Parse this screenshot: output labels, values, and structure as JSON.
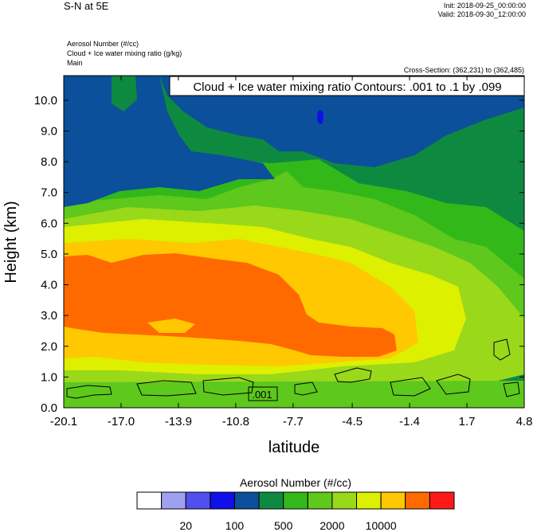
{
  "header": {
    "title": "S-N at 5E",
    "init": "Init: 2018-09-25_00:00:00",
    "valid": "Valid: 2018-09-30_12:00:00",
    "field1": "Aerosol Number   (#/cc)",
    "field2": "Cloud + Ice water mixing ratio   (g/kg)",
    "field3": "Main",
    "cross_section": "Cross-Section: (362,231) to (362,485)"
  },
  "chart_data": {
    "type": "heatmap",
    "contour_label": "Cloud + Ice water mixing ratio Contours: .001 to .1 by .099",
    "inline_label": ".001",
    "xlabel": "latitude",
    "ylabel": "Height (km)",
    "xlim": [
      -20.1,
      4.8
    ],
    "ylim": [
      0.0,
      10.8
    ],
    "xticks": [
      "-20.1",
      "-17.0",
      "-13.9",
      "-10.8",
      "-7.7",
      "-4.5",
      "-1.4",
      "1.7",
      "4.8"
    ],
    "yticks": [
      "0.0",
      "1.0",
      "2.0",
      "3.0",
      "4.0",
      "5.0",
      "6.0",
      "7.0",
      "8.0",
      "9.0",
      "10.0"
    ],
    "colorbar": {
      "title": "Aerosol Number  (#/cc)",
      "colors": [
        "#ffffff",
        "#a0a0f0",
        "#5050f0",
        "#1010e8",
        "#0c4f9a",
        "#0e8a40",
        "#33b81a",
        "#5ec81c",
        "#9ad81a",
        "#dcf000",
        "#ffc800",
        "#ff6a00",
        "#ff1a1a"
      ],
      "labels": [
        "20",
        "100",
        "500",
        "2000",
        "10000"
      ]
    },
    "grid": false
  }
}
